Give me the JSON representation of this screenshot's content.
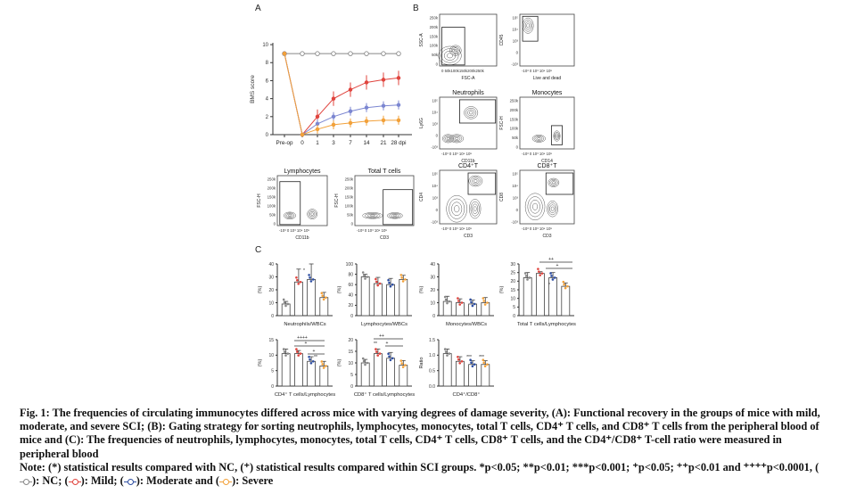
{
  "panels": {
    "A": "A",
    "B": "B",
    "C": "C"
  },
  "bms": {
    "ylabel": "BMS score",
    "yticks": [
      "0",
      "2",
      "4",
      "6",
      "8",
      "10"
    ],
    "xticks": [
      "Pre-op",
      "0",
      "1",
      "3",
      "7",
      "14",
      "21",
      "28 dpi"
    ]
  },
  "flow": {
    "p1": {
      "xlabel": "FSC-A",
      "ylabel": "SSC-A",
      "yticks": [
        "250k",
        "200k",
        "150k",
        "100k",
        "50k",
        "0"
      ],
      "xticks": "0  50k100k150k200k250k"
    },
    "p2": {
      "xlabel": "Live and dead",
      "ylabel": "CD45",
      "yticks": [
        "10⁵",
        "10⁴",
        "10³",
        "0",
        "-10³"
      ],
      "xticks": "-10³ 0  10³  10⁴  10⁵"
    },
    "p3": {
      "title": "Neutrophils",
      "xlabel": "CD11b",
      "ylabel": "Ly6G",
      "yticks": [
        "10⁵",
        "10⁴",
        "10³",
        "0",
        "-10³"
      ],
      "xticks": "-10³ 0  10³  10⁴  10⁵"
    },
    "p4": {
      "title": "Monocytes",
      "xlabel": "CD14",
      "ylabel": "FSC-H",
      "yticks": [
        "250k",
        "200k",
        "150k",
        "100k",
        "50k",
        "0"
      ],
      "xticks": "-10³ 0  10³  10⁴  10⁵"
    },
    "p5": {
      "title": "CD4⁺T",
      "xlabel": "CD3",
      "ylabel": "CD4",
      "yticks": [
        "10⁵",
        "10⁴",
        "10³",
        "0",
        "-10³"
      ],
      "xticks": "-10³ 0  10³  10⁴  10⁵"
    },
    "p6": {
      "title": "CD8⁺T",
      "xlabel": "CD3",
      "ylabel": "CD8",
      "yticks": [
        "10⁵",
        "10⁴",
        "10³",
        "0",
        "-10³"
      ],
      "xticks": "-10³ 0  10³  10⁴  10⁵"
    },
    "p7": {
      "title": "Lymphocytes",
      "xlabel": "CD11b",
      "ylabel": "FSC-H",
      "yticks": [
        "250k",
        "200k",
        "150k",
        "100k",
        "50k",
        "0"
      ],
      "xticks": "-10³ 0  10³  10⁴  10⁵"
    },
    "p8": {
      "title": "Total T cells",
      "xlabel": "CD3",
      "ylabel": "FSC-H",
      "yticks": [
        "250k",
        "200k",
        "150k",
        "100k",
        "50k",
        "0"
      ],
      "xticks": "-10³ 0  10³  10⁴  10⁵"
    }
  },
  "bars": {
    "ylabel": "(%)",
    "ratio_ylabel": "Ratio",
    "c1": {
      "label": "Neutrophils/WBCs",
      "yticks": [
        "40",
        "30",
        "20",
        "10",
        "0"
      ]
    },
    "c2": {
      "label": "Lymphocytes/WBCs",
      "yticks": [
        "100",
        "80",
        "60",
        "40",
        "20",
        "0"
      ]
    },
    "c3": {
      "label": "Monocytes/WBCs",
      "yticks": [
        "40",
        "30",
        "20",
        "10",
        "0"
      ]
    },
    "c4": {
      "label": "Total T cells/Lymphocytes",
      "yticks": [
        "30",
        "25",
        "20",
        "15",
        "10",
        "5",
        "0"
      ]
    },
    "c5": {
      "label": "CD4⁺ T cells/Lymphocytes",
      "yticks": [
        "15",
        "10",
        "5",
        "0"
      ]
    },
    "c6": {
      "label": "CD8⁺ T cells/Lymphocytes",
      "yticks": [
        "20",
        "15",
        "10",
        "5",
        "0"
      ]
    },
    "c7": {
      "label": "CD4⁺/CD8⁺",
      "yticks": [
        "1.5",
        "1.0",
        "0.5",
        "0.0"
      ]
    },
    "sig": {
      "c4a": "++",
      "c4b": "+",
      "c5a": "++++",
      "c5b": "+",
      "c5c": "+",
      "c6a": "++",
      "c6b": "+",
      "star1": "*",
      "star2": "**",
      "star3": "***"
    }
  },
  "chart_data": {
    "type": "line",
    "x": [
      "Pre-op",
      "0",
      "1",
      "3",
      "7",
      "14",
      "21",
      "28 dpi"
    ],
    "ylabel": "BMS score",
    "ylim": [
      0,
      10
    ],
    "series": [
      {
        "color": "#888888",
        "values": [
          9,
          9,
          9,
          9,
          9,
          9,
          9,
          9
        ]
      },
      {
        "color": "#e0443e",
        "values": [
          9,
          0,
          2,
          4,
          5,
          5.8,
          6.1,
          6.3
        ]
      },
      {
        "color": "#7b86d1",
        "values": [
          9,
          0,
          1.2,
          2,
          2.6,
          3,
          3.2,
          3.3
        ]
      },
      {
        "color": "#f2a13a",
        "values": [
          9,
          0,
          0.6,
          1.1,
          1.3,
          1.5,
          1.6,
          1.6
        ]
      }
    ]
  },
  "bar_data": [
    {
      "id": "c1",
      "max": 45,
      "values": [
        9,
        26,
        28,
        14
      ],
      "errs": [
        2,
        10,
        12,
        4
      ]
    },
    {
      "id": "c2",
      "max": 100,
      "values": [
        75,
        62,
        60,
        70
      ],
      "errs": [
        5,
        12,
        12,
        8
      ]
    },
    {
      "id": "c3",
      "max": 40,
      "values": [
        11,
        10,
        9,
        10
      ],
      "errs": [
        4,
        3,
        3,
        4
      ]
    },
    {
      "id": "c4",
      "max": 30,
      "values": [
        22,
        24.5,
        22,
        17
      ],
      "errs": [
        3,
        1,
        3,
        2
      ]
    },
    {
      "id": "c5",
      "max": 15,
      "values": [
        10.5,
        10.5,
        8,
        6.5
      ],
      "errs": [
        1.5,
        1,
        1.5,
        1.5
      ]
    },
    {
      "id": "c6",
      "max": 20,
      "values": [
        10,
        14,
        12,
        9
      ],
      "errs": [
        1.5,
        2,
        2.5,
        2
      ]
    },
    {
      "id": "c7",
      "max": 1.5,
      "values": [
        1.05,
        0.8,
        0.7,
        0.7
      ],
      "errs": [
        0.15,
        0.15,
        0.12,
        0.12
      ]
    }
  ],
  "colors": {
    "nc": "#888888",
    "mild": "#e0443e",
    "moderate": "#2f4fa2",
    "severe": "#f2a13a"
  },
  "caption": {
    "title": "Fig. 1: The frequencies of circulating immunocytes differed across mice with varying degrees of damage severity, (A): Functional recovery in the groups of mice with mild, moderate, and severe SCI; (B): Gating strategy for sorting neutrophils, lymphocytes, monocytes, total T cells, CD4⁺ T cells, and CD8⁺ T cells from the peripheral blood of mice and (C): The frequencies of neutrophils, lymphocytes, monocytes, total T cells, CD4⁺ T cells, CD8⁺ T cells, and the CD4⁺/CD8⁺ T-cell ratio were measured in peripheral blood",
    "note_a": "Note: (*) statistical results compared with NC, (⁺) statistical results compared within SCI groups. *p<0.05; **p<0.01; ***p<0.001; ⁺p<0.05; ⁺⁺p<0.01 and ⁺⁺⁺⁺p<0.0001, (",
    "nc": "): NC; (",
    "mild": "): Mild; (",
    "moderate": "): Moderate and (",
    "severe": "): Severe"
  }
}
